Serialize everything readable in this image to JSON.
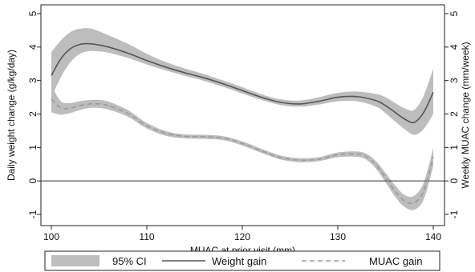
{
  "chart_data": {
    "type": "line",
    "title": "",
    "xlabel": "MUAC at prior visit (mm)",
    "ylabel_left": "Daily weight change (g/kg/day)",
    "ylabel_right": "Weekly MUAC change (mm/week)",
    "xlim": [
      100,
      140
    ],
    "ylim": [
      -1,
      5
    ],
    "x_ticks": [
      100,
      110,
      120,
      130,
      140
    ],
    "y_ticks": [
      -1,
      0,
      1,
      2,
      3,
      4,
      5
    ],
    "reference_line_y": 0,
    "grid": false,
    "legend_position": "bottom",
    "series": [
      {
        "name": "Weight gain",
        "style": "solid",
        "color": "#555555",
        "ci_color": "#bdbdbd",
        "x": [
          100,
          101,
          102,
          103,
          104,
          105,
          106,
          108,
          110,
          112,
          114,
          116,
          118,
          120,
          122,
          124,
          126,
          128,
          130,
          132,
          134,
          135,
          136,
          137,
          138,
          139,
          140
        ],
        "y": [
          3.15,
          3.65,
          3.95,
          4.08,
          4.1,
          4.06,
          4.0,
          3.82,
          3.6,
          3.4,
          3.23,
          3.08,
          2.9,
          2.7,
          2.5,
          2.35,
          2.3,
          2.38,
          2.5,
          2.52,
          2.4,
          2.25,
          2.05,
          1.85,
          1.75,
          2.05,
          2.65
        ],
        "ci_lower": [
          2.5,
          3.1,
          3.55,
          3.8,
          3.88,
          3.87,
          3.83,
          3.68,
          3.48,
          3.3,
          3.14,
          2.99,
          2.81,
          2.61,
          2.42,
          2.27,
          2.22,
          2.28,
          2.38,
          2.38,
          2.22,
          2.02,
          1.78,
          1.55,
          1.38,
          1.55,
          2.0
        ],
        "ci_upper": [
          3.85,
          4.2,
          4.45,
          4.55,
          4.56,
          4.47,
          4.35,
          4.1,
          3.8,
          3.55,
          3.36,
          3.19,
          3.0,
          2.8,
          2.59,
          2.44,
          2.4,
          2.5,
          2.63,
          2.67,
          2.6,
          2.5,
          2.33,
          2.17,
          2.12,
          2.55,
          3.35
        ]
      },
      {
        "name": "MUAC gain",
        "style": "dashed",
        "color": "#9a9a9a",
        "ci_color": "#bdbdbd",
        "x": [
          100,
          101,
          102,
          103,
          104,
          105,
          106,
          108,
          110,
          112,
          114,
          116,
          118,
          120,
          122,
          124,
          126,
          128,
          130,
          132,
          133,
          134,
          135,
          136,
          137,
          138,
          139,
          140
        ],
        "y": [
          2.45,
          2.18,
          2.18,
          2.25,
          2.3,
          2.3,
          2.25,
          2.02,
          1.65,
          1.42,
          1.33,
          1.32,
          1.28,
          1.12,
          0.9,
          0.7,
          0.62,
          0.65,
          0.78,
          0.8,
          0.72,
          0.48,
          0.1,
          -0.3,
          -0.6,
          -0.65,
          -0.3,
          0.72
        ],
        "ci_lower": [
          2.05,
          1.98,
          2.03,
          2.12,
          2.18,
          2.18,
          2.13,
          1.92,
          1.57,
          1.35,
          1.27,
          1.26,
          1.22,
          1.06,
          0.84,
          0.64,
          0.56,
          0.59,
          0.71,
          0.72,
          0.63,
          0.37,
          -0.04,
          -0.47,
          -0.78,
          -0.86,
          -0.55,
          0.45
        ],
        "ci_upper": [
          2.85,
          2.38,
          2.33,
          2.38,
          2.42,
          2.42,
          2.37,
          2.12,
          1.73,
          1.49,
          1.39,
          1.38,
          1.34,
          1.18,
          0.96,
          0.76,
          0.68,
          0.71,
          0.85,
          0.88,
          0.81,
          0.59,
          0.24,
          -0.13,
          -0.42,
          -0.44,
          -0.05,
          0.99
        ]
      }
    ],
    "legend": {
      "ci_label": "95% CI",
      "weight_label": "Weight gain",
      "muac_label": "MUAC gain"
    }
  }
}
